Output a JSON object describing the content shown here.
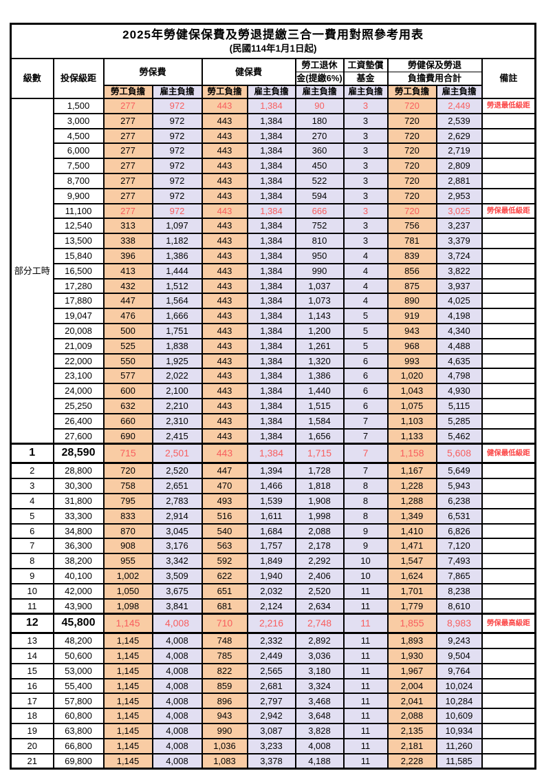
{
  "title": "2025年勞健保保費及勞退提繳三合一費用對照參考用表",
  "subtitle": "(民國114年1月1日起)",
  "colors": {
    "employee_col_bg": "#F9CCA4",
    "employer_col_bg": "#E2DFF2",
    "highlight_value_red": "#F85E5E",
    "remark_red": "#FB4747",
    "border": "#000000"
  },
  "header": {
    "level": "級數",
    "bracket": "投保級距",
    "labor_ins": "勞保費",
    "health_ins": "健保費",
    "pension_line1": "勞工退休",
    "pension_line2": "金(提繳6%)",
    "wage_fund_line1": "工資墊償",
    "wage_fund_line2": "基金",
    "total_line1": "勞健保及勞退",
    "total_line2": "負擔費用合計",
    "remark": "備註",
    "employee": "勞工負擔",
    "employer": "雇主負擔"
  },
  "part_time_label": "部分工時",
  "part_time_rowspan": 23,
  "rows": [
    {
      "level": null,
      "salary": "1,500",
      "values": [
        "277",
        "972",
        "443",
        "1,384",
        "90",
        "3",
        "720",
        "2,449"
      ],
      "remark": "勞退最低級距",
      "red": true,
      "big": false
    },
    {
      "level": null,
      "salary": "3,000",
      "values": [
        "277",
        "972",
        "443",
        "1,384",
        "180",
        "3",
        "720",
        "2,539"
      ],
      "remark": "",
      "red": false,
      "big": false
    },
    {
      "level": null,
      "salary": "4,500",
      "values": [
        "277",
        "972",
        "443",
        "1,384",
        "270",
        "3",
        "720",
        "2,629"
      ],
      "remark": "",
      "red": false,
      "big": false
    },
    {
      "level": null,
      "salary": "6,000",
      "values": [
        "277",
        "972",
        "443",
        "1,384",
        "360",
        "3",
        "720",
        "2,719"
      ],
      "remark": "",
      "red": false,
      "big": false
    },
    {
      "level": null,
      "salary": "7,500",
      "values": [
        "277",
        "972",
        "443",
        "1,384",
        "450",
        "3",
        "720",
        "2,809"
      ],
      "remark": "",
      "red": false,
      "big": false
    },
    {
      "level": null,
      "salary": "8,700",
      "values": [
        "277",
        "972",
        "443",
        "1,384",
        "522",
        "3",
        "720",
        "2,881"
      ],
      "remark": "",
      "red": false,
      "big": false
    },
    {
      "level": null,
      "salary": "9,900",
      "values": [
        "277",
        "972",
        "443",
        "1,384",
        "594",
        "3",
        "720",
        "2,953"
      ],
      "remark": "",
      "red": false,
      "big": false
    },
    {
      "level": null,
      "salary": "11,100",
      "values": [
        "277",
        "972",
        "443",
        "1,384",
        "666",
        "3",
        "720",
        "3,025"
      ],
      "remark": "勞保最低級距",
      "red": true,
      "big": false
    },
    {
      "level": null,
      "salary": "12,540",
      "values": [
        "313",
        "1,097",
        "443",
        "1,384",
        "752",
        "3",
        "756",
        "3,237"
      ],
      "remark": "",
      "red": false,
      "big": false
    },
    {
      "level": null,
      "salary": "13,500",
      "values": [
        "338",
        "1,182",
        "443",
        "1,384",
        "810",
        "3",
        "781",
        "3,379"
      ],
      "remark": "",
      "red": false,
      "big": false
    },
    {
      "level": null,
      "salary": "15,840",
      "values": [
        "396",
        "1,386",
        "443",
        "1,384",
        "950",
        "4",
        "839",
        "3,724"
      ],
      "remark": "",
      "red": false,
      "big": false
    },
    {
      "level": null,
      "salary": "16,500",
      "values": [
        "413",
        "1,444",
        "443",
        "1,384",
        "990",
        "4",
        "856",
        "3,822"
      ],
      "remark": "",
      "red": false,
      "big": false
    },
    {
      "level": null,
      "salary": "17,280",
      "values": [
        "432",
        "1,512",
        "443",
        "1,384",
        "1,037",
        "4",
        "875",
        "3,937"
      ],
      "remark": "",
      "red": false,
      "big": false
    },
    {
      "level": null,
      "salary": "17,880",
      "values": [
        "447",
        "1,564",
        "443",
        "1,384",
        "1,073",
        "4",
        "890",
        "4,025"
      ],
      "remark": "",
      "red": false,
      "big": false
    },
    {
      "level": null,
      "salary": "19,047",
      "values": [
        "476",
        "1,666",
        "443",
        "1,384",
        "1,143",
        "5",
        "919",
        "4,198"
      ],
      "remark": "",
      "red": false,
      "big": false
    },
    {
      "level": null,
      "salary": "20,008",
      "values": [
        "500",
        "1,751",
        "443",
        "1,384",
        "1,200",
        "5",
        "943",
        "4,340"
      ],
      "remark": "",
      "red": false,
      "big": false
    },
    {
      "level": null,
      "salary": "21,009",
      "values": [
        "525",
        "1,838",
        "443",
        "1,384",
        "1,261",
        "5",
        "968",
        "4,488"
      ],
      "remark": "",
      "red": false,
      "big": false
    },
    {
      "level": null,
      "salary": "22,000",
      "values": [
        "550",
        "1,925",
        "443",
        "1,384",
        "1,320",
        "6",
        "993",
        "4,635"
      ],
      "remark": "",
      "red": false,
      "big": false
    },
    {
      "level": null,
      "salary": "23,100",
      "values": [
        "577",
        "2,022",
        "443",
        "1,384",
        "1,386",
        "6",
        "1,020",
        "4,798"
      ],
      "remark": "",
      "red": false,
      "big": false
    },
    {
      "level": null,
      "salary": "24,000",
      "values": [
        "600",
        "2,100",
        "443",
        "1,384",
        "1,440",
        "6",
        "1,043",
        "4,930"
      ],
      "remark": "",
      "red": false,
      "big": false
    },
    {
      "level": null,
      "salary": "25,250",
      "values": [
        "632",
        "2,210",
        "443",
        "1,384",
        "1,515",
        "6",
        "1,075",
        "5,115"
      ],
      "remark": "",
      "red": false,
      "big": false
    },
    {
      "level": null,
      "salary": "26,400",
      "values": [
        "660",
        "2,310",
        "443",
        "1,384",
        "1,584",
        "7",
        "1,103",
        "5,285"
      ],
      "remark": "",
      "red": false,
      "big": false
    },
    {
      "level": null,
      "salary": "27,600",
      "values": [
        "690",
        "2,415",
        "443",
        "1,384",
        "1,656",
        "7",
        "1,133",
        "5,462"
      ],
      "remark": "",
      "red": false,
      "big": false
    },
    {
      "level": "1",
      "salary": "28,590",
      "values": [
        "715",
        "2,501",
        "443",
        "1,384",
        "1,715",
        "7",
        "1,158",
        "5,608"
      ],
      "remark": "健保最低級距",
      "red": true,
      "big": true
    },
    {
      "level": "2",
      "salary": "28,800",
      "values": [
        "720",
        "2,520",
        "447",
        "1,394",
        "1,728",
        "7",
        "1,167",
        "5,649"
      ],
      "remark": "",
      "red": false,
      "big": false
    },
    {
      "level": "3",
      "salary": "30,300",
      "values": [
        "758",
        "2,651",
        "470",
        "1,466",
        "1,818",
        "8",
        "1,228",
        "5,943"
      ],
      "remark": "",
      "red": false,
      "big": false
    },
    {
      "level": "4",
      "salary": "31,800",
      "values": [
        "795",
        "2,783",
        "493",
        "1,539",
        "1,908",
        "8",
        "1,288",
        "6,238"
      ],
      "remark": "",
      "red": false,
      "big": false
    },
    {
      "level": "5",
      "salary": "33,300",
      "values": [
        "833",
        "2,914",
        "516",
        "1,611",
        "1,998",
        "8",
        "1,349",
        "6,531"
      ],
      "remark": "",
      "red": false,
      "big": false
    },
    {
      "level": "6",
      "salary": "34,800",
      "values": [
        "870",
        "3,045",
        "540",
        "1,684",
        "2,088",
        "9",
        "1,410",
        "6,826"
      ],
      "remark": "",
      "red": false,
      "big": false
    },
    {
      "level": "7",
      "salary": "36,300",
      "values": [
        "908",
        "3,176",
        "563",
        "1,757",
        "2,178",
        "9",
        "1,471",
        "7,120"
      ],
      "remark": "",
      "red": false,
      "big": false
    },
    {
      "level": "8",
      "salary": "38,200",
      "values": [
        "955",
        "3,342",
        "592",
        "1,849",
        "2,292",
        "10",
        "1,547",
        "7,493"
      ],
      "remark": "",
      "red": false,
      "big": false
    },
    {
      "level": "9",
      "salary": "40,100",
      "values": [
        "1,002",
        "3,509",
        "622",
        "1,940",
        "2,406",
        "10",
        "1,624",
        "7,865"
      ],
      "remark": "",
      "red": false,
      "big": false
    },
    {
      "level": "10",
      "salary": "42,000",
      "values": [
        "1,050",
        "3,675",
        "651",
        "2,032",
        "2,520",
        "11",
        "1,701",
        "8,238"
      ],
      "remark": "",
      "red": false,
      "big": false
    },
    {
      "level": "11",
      "salary": "43,900",
      "values": [
        "1,098",
        "3,841",
        "681",
        "2,124",
        "2,634",
        "11",
        "1,779",
        "8,610"
      ],
      "remark": "",
      "red": false,
      "big": false
    },
    {
      "level": "12",
      "salary": "45,800",
      "values": [
        "1,145",
        "4,008",
        "710",
        "2,216",
        "2,748",
        "11",
        "1,855",
        "8,983"
      ],
      "remark": "勞保最高級距",
      "red": true,
      "big": true
    },
    {
      "level": "13",
      "salary": "48,200",
      "values": [
        "1,145",
        "4,008",
        "748",
        "2,332",
        "2,892",
        "11",
        "1,893",
        "9,243"
      ],
      "remark": "",
      "red": false,
      "big": false
    },
    {
      "level": "14",
      "salary": "50,600",
      "values": [
        "1,145",
        "4,008",
        "785",
        "2,449",
        "3,036",
        "11",
        "1,930",
        "9,504"
      ],
      "remark": "",
      "red": false,
      "big": false
    },
    {
      "level": "15",
      "salary": "53,000",
      "values": [
        "1,145",
        "4,008",
        "822",
        "2,565",
        "3,180",
        "11",
        "1,967",
        "9,764"
      ],
      "remark": "",
      "red": false,
      "big": false
    },
    {
      "level": "16",
      "salary": "55,400",
      "values": [
        "1,145",
        "4,008",
        "859",
        "2,681",
        "3,324",
        "11",
        "2,004",
        "10,024"
      ],
      "remark": "",
      "red": false,
      "big": false
    },
    {
      "level": "17",
      "salary": "57,800",
      "values": [
        "1,145",
        "4,008",
        "896",
        "2,797",
        "3,468",
        "11",
        "2,041",
        "10,284"
      ],
      "remark": "",
      "red": false,
      "big": false
    },
    {
      "level": "18",
      "salary": "60,800",
      "values": [
        "1,145",
        "4,008",
        "943",
        "2,942",
        "3,648",
        "11",
        "2,088",
        "10,609"
      ],
      "remark": "",
      "red": false,
      "big": false
    },
    {
      "level": "19",
      "salary": "63,800",
      "values": [
        "1,145",
        "4,008",
        "990",
        "3,087",
        "3,828",
        "11",
        "2,135",
        "10,934"
      ],
      "remark": "",
      "red": false,
      "big": false
    },
    {
      "level": "20",
      "salary": "66,800",
      "values": [
        "1,145",
        "4,008",
        "1,036",
        "3,233",
        "4,008",
        "11",
        "2,181",
        "11,260"
      ],
      "remark": "",
      "red": false,
      "big": false
    },
    {
      "level": "21",
      "salary": "69,800",
      "values": [
        "1,145",
        "4,008",
        "1,083",
        "3,378",
        "4,188",
        "11",
        "2,228",
        "11,585"
      ],
      "remark": "",
      "red": false,
      "big": false
    }
  ]
}
